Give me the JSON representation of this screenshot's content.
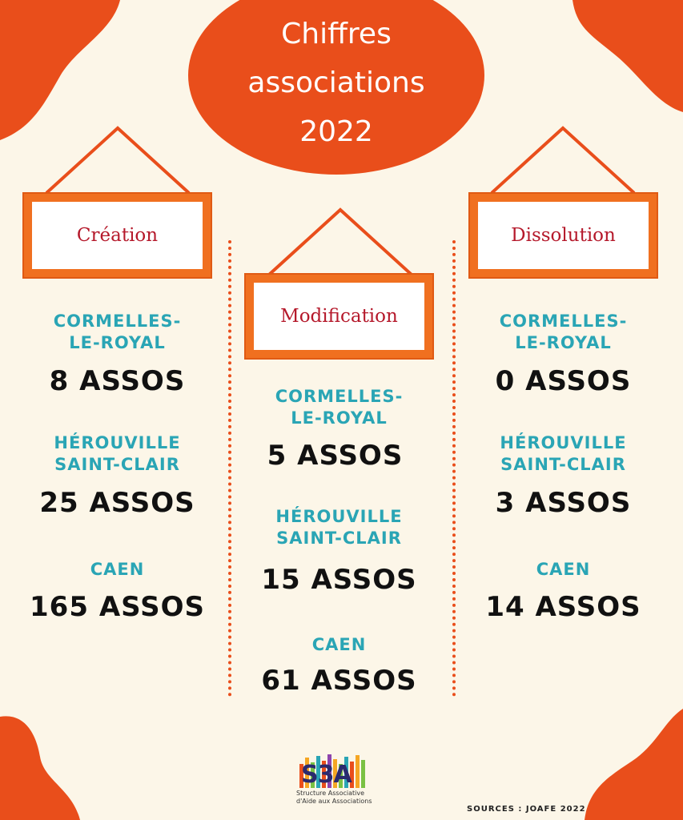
{
  "title": {
    "line1": "Chiffres",
    "line2": "associations",
    "line3": "2022"
  },
  "colors": {
    "accent": "#e94e1b",
    "frame": "#f07020",
    "signText": "#b5192b",
    "city": "#2aa5b5",
    "background": "#fcf6e8"
  },
  "columns": [
    {
      "heading": "Création",
      "entries": [
        {
          "city": [
            "CORMELLES-",
            "LE-ROYAL"
          ],
          "count": "8 ASSOS"
        },
        {
          "city": [
            "HÉROUVILLE",
            "SAINT-CLAIR"
          ],
          "count": "25 ASSOS"
        },
        {
          "city": [
            "CAEN"
          ],
          "count": "165 ASSOS"
        }
      ]
    },
    {
      "heading": "Modification",
      "entries": [
        {
          "city": [
            "CORMELLES-",
            "LE-ROYAL"
          ],
          "count": "5 ASSOS"
        },
        {
          "city": [
            "HÉROUVILLE",
            "SAINT-CLAIR"
          ],
          "count": "15 ASSOS"
        },
        {
          "city": [
            "CAEN"
          ],
          "count": "61 ASSOS"
        }
      ]
    },
    {
      "heading": "Dissolution",
      "entries": [
        {
          "city": [
            "CORMELLES-",
            "LE-ROYAL"
          ],
          "count": "0 ASSOS"
        },
        {
          "city": [
            "HÉROUVILLE",
            "SAINT-CLAIR"
          ],
          "count": "3 ASSOS"
        },
        {
          "city": [
            "CAEN"
          ],
          "count": "14 ASSOS"
        }
      ]
    }
  ],
  "logo": {
    "name": "S3A",
    "tagline1": "Structure Associative",
    "tagline2": "d'Aide aux Associations"
  },
  "sources": "SOURCES : JOAFE 2022"
}
